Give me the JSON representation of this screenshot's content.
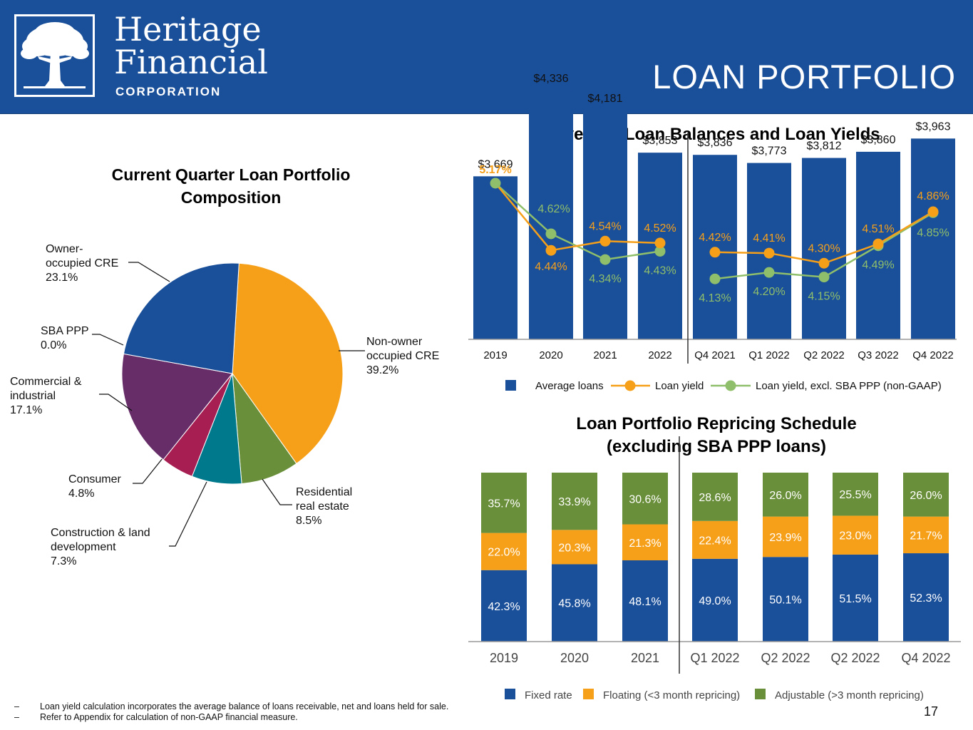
{
  "header": {
    "company_name_line1": "Heritage",
    "company_name_line2": "Financial",
    "company_name_line3": "CORPORATION",
    "page_title": "LOAN PORTFOLIO",
    "background_color": "#1a4f9a",
    "logo_icon": "oak-tree-icon"
  },
  "colors": {
    "blue": "#1a4f9a",
    "orange": "#f6a01a",
    "green": "#6a8f3a",
    "light_green": "#8fbf6a",
    "purple": "#662d68",
    "magenta": "#a61e52",
    "teal": "#00798c"
  },
  "chart_data": [
    {
      "type": "pie",
      "title": "Current Quarter Loan Portfolio Composition",
      "slices": [
        {
          "label": "Non-owner occupied CRE",
          "value": 39.2,
          "display": "39.2%",
          "color": "#f6a01a"
        },
        {
          "label": "Residential real estate",
          "value": 8.5,
          "display": "8.5%",
          "color": "#6a8f3a"
        },
        {
          "label": "Construction & land development",
          "value": 7.3,
          "display": "7.3%",
          "color": "#00798c"
        },
        {
          "label": "Consumer",
          "value": 4.8,
          "display": "4.8%",
          "color": "#a61e52"
        },
        {
          "label": "Commercial & industrial",
          "value": 17.1,
          "display": "17.1%",
          "color": "#662d68"
        },
        {
          "label": "SBA PPP",
          "value": 0.0,
          "display": "0.0%",
          "color": "#1a4f9a"
        },
        {
          "label": "Owner-occupied CRE",
          "value": 23.1,
          "display": "23.1%",
          "color": "#1a4f9a"
        }
      ]
    },
    {
      "type": "bar",
      "title": "Average Loan Balances and Loan Yields",
      "categories": [
        "2019",
        "2020",
        "2021",
        "2022",
        "Q4 2021",
        "Q1 2022",
        "Q2 2022",
        "Q3 2022",
        "Q4 2022"
      ],
      "series": [
        {
          "name": "Average loans",
          "type": "bar",
          "color": "#1a4f9a",
          "values": [
            3669,
            4336,
            4181,
            3853,
            3836,
            3773,
            3812,
            3860,
            3963
          ],
          "labels": [
            "$3,669",
            "$4,336",
            "$4,181",
            "$3,853",
            "$3,836",
            "$3,773",
            "$3,812",
            "$3,860",
            "$3,963"
          ]
        },
        {
          "name": "Loan yield",
          "type": "line",
          "color": "#f6a01a",
          "values": [
            5.17,
            4.44,
            4.54,
            4.52,
            4.42,
            4.41,
            4.3,
            4.51,
            4.86
          ],
          "labels": [
            "5.17%",
            "4.44%",
            "4.54%",
            "4.52%",
            "4.42%",
            "4.41%",
            "4.30%",
            "4.51%",
            "4.86%"
          ]
        },
        {
          "name": "Loan yield, excl. SBA PPP (non-GAAP)",
          "type": "line",
          "color": "#8fbf6a",
          "values": [
            5.17,
            4.62,
            4.34,
            4.43,
            4.13,
            4.2,
            4.15,
            4.49,
            4.85
          ],
          "labels": [
            "",
            "4.62%",
            "4.34%",
            "4.43%",
            "4.13%",
            "4.20%",
            "4.15%",
            "4.49%",
            "4.85%"
          ]
        }
      ],
      "segments": [
        [
          0,
          3
        ],
        [
          4,
          8
        ]
      ],
      "legend_position": "bottom"
    },
    {
      "type": "bar",
      "stacked": true,
      "title": "Loan Portfolio Repricing Schedule (excluding SBA PPP loans)",
      "title_line1": "Loan Portfolio Repricing Schedule",
      "title_line2": "(excluding SBA PPP loans)",
      "categories": [
        "2019",
        "2020",
        "2021",
        "Q1 2022",
        "Q2 2022",
        "Q2 2022",
        "Q4 2022"
      ],
      "series": [
        {
          "name": "Fixed rate",
          "color": "#1a4f9a",
          "values": [
            42.3,
            45.8,
            48.1,
            49.0,
            50.1,
            51.5,
            52.3
          ],
          "labels": [
            "42.3%",
            "45.8%",
            "48.1%",
            "49.0%",
            "50.1%",
            "51.5%",
            "52.3%"
          ]
        },
        {
          "name": "Floating (<3 month repricing)",
          "color": "#f6a01a",
          "values": [
            22.0,
            20.3,
            21.3,
            22.4,
            23.9,
            23.0,
            21.7
          ],
          "labels": [
            "22.0%",
            "20.3%",
            "21.3%",
            "22.4%",
            "23.9%",
            "23.0%",
            "21.7%"
          ]
        },
        {
          "name": "Adjustable (>3 month repricing)",
          "color": "#6a8f3a",
          "values": [
            35.7,
            33.9,
            30.6,
            28.6,
            26.0,
            25.5,
            26.0
          ],
          "labels": [
            "35.7%",
            "33.9%",
            "30.6%",
            "28.6%",
            "26.0%",
            "25.5%",
            "26.0%"
          ]
        }
      ],
      "legend_position": "bottom"
    }
  ],
  "footnotes": [
    {
      "dash": "–",
      "text": "Loan yield calculation incorporates the average balance of loans receivable, net and loans held for sale."
    },
    {
      "dash": "–",
      "text": "Refer to Appendix for calculation of non-GAAP financial measure."
    }
  ],
  "page_number": "17"
}
